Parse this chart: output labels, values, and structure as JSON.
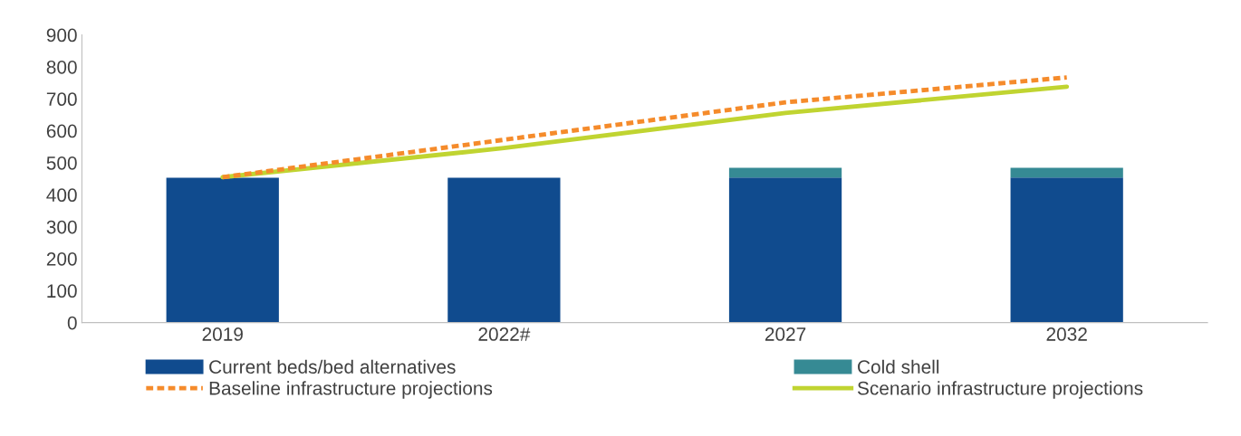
{
  "chart_data": {
    "type": "bar",
    "stacked": true,
    "categories": [
      "2019",
      "2022#",
      "2027",
      "2032"
    ],
    "series": [
      {
        "name": "Current beds/bed alternatives",
        "color": "#104b8e",
        "values": [
          453,
          453,
          454,
          454
        ]
      },
      {
        "name": "Cold shell",
        "color": "#368a94",
        "values": [
          0,
          0,
          30,
          30
        ]
      },
      {
        "name": "Baseline infrastructure projections",
        "type": "line",
        "line_style": "dashed",
        "color": "#f58b2b",
        "values": [
          455,
          572,
          689,
          767
        ]
      },
      {
        "name": "Scenario infrastructure projections",
        "type": "line",
        "line_style": "solid",
        "color": "#c0d431",
        "values": [
          455,
          546,
          656,
          738
        ]
      }
    ],
    "ylim": [
      0,
      900
    ],
    "yticks": [
      0,
      100,
      200,
      300,
      400,
      500,
      600,
      700,
      800,
      900
    ],
    "grid": false,
    "legend": "bottom"
  }
}
